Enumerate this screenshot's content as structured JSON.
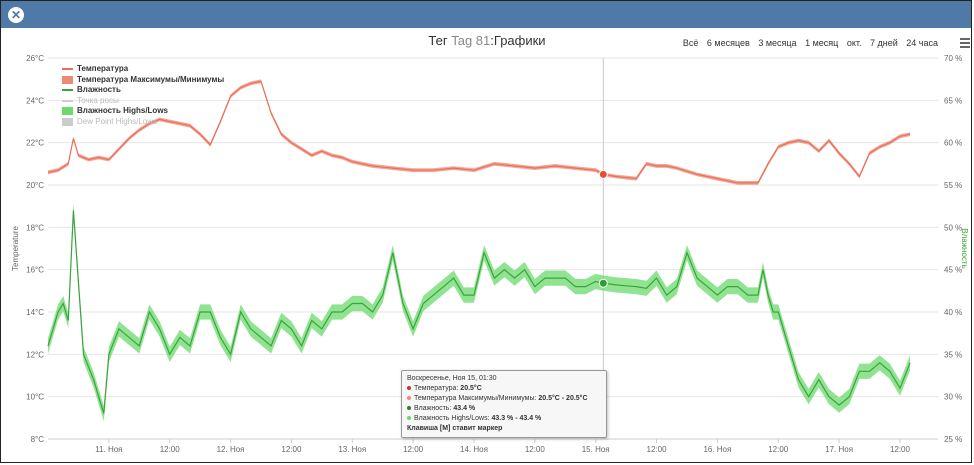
{
  "window": {
    "close_icon": "close-icon"
  },
  "header": {
    "title_prefix": "Тег",
    "title_tag": "Tag 81",
    "title_suffix": ":Графики",
    "ranges": [
      "Всё",
      "6 месяцев",
      "3 месяца",
      "1 месяц",
      "окт.",
      "7 дней",
      "24 часа"
    ],
    "menu_icon": "hamburger-icon"
  },
  "legend": [
    {
      "label": "Температура",
      "color": "#e8705a",
      "kind": "line",
      "bold": true,
      "muted": false
    },
    {
      "label": "Температура Максимумы/Минимумы",
      "color": "#f08a74",
      "kind": "area",
      "bold": true,
      "muted": false
    },
    {
      "label": "Влажность",
      "color": "#3ca33c",
      "kind": "line",
      "bold": true,
      "muted": false
    },
    {
      "label": "Точка росы",
      "color": "#cccccc",
      "kind": "line",
      "bold": false,
      "muted": true
    },
    {
      "label": "Влажность Highs/Lows",
      "color": "#6bd96b",
      "kind": "area",
      "bold": true,
      "muted": false
    },
    {
      "label": "Dew Point Highs/Lows",
      "color": "#cccccc",
      "kind": "area",
      "bold": false,
      "muted": true
    }
  ],
  "tooltip": {
    "header": "Воскресенье, Ноя 15, 01:30",
    "rows": [
      {
        "color": "#c0392b",
        "label": "Температура:",
        "value": "20.5°C"
      },
      {
        "color": "#f08a74",
        "label": "Температура Максимумы/Минимумы:",
        "value": "20.5°C - 20.5°C"
      },
      {
        "color": "#2e7d2e",
        "label": "Влажность:",
        "value": "43.4 %"
      },
      {
        "color": "#6bd96b",
        "label": "Влажность Highs/Lows:",
        "value": "43.3 % - 43.4 %"
      }
    ],
    "footer": "Клавиша [M] ставит маркер"
  },
  "chart_data": {
    "type": "line",
    "xlabel": "",
    "ylabel": "Temperature",
    "y2label": "Влажность",
    "ylim": [
      8,
      26
    ],
    "y2lim": [
      25,
      70
    ],
    "y_unit": "°C",
    "y2_unit": " %",
    "y_ticks": [
      8,
      10,
      12,
      14,
      16,
      18,
      20,
      22,
      24,
      26
    ],
    "y2_ticks": [
      25,
      30,
      35,
      40,
      45,
      50,
      55,
      60,
      65,
      70
    ],
    "xlim_hours": [
      0,
      168
    ],
    "x_ticks": [
      {
        "t": 12,
        "label": "11. Ноя"
      },
      {
        "t": 24,
        "label": "12:00"
      },
      {
        "t": 36,
        "label": "12. Ноя"
      },
      {
        "t": 48,
        "label": "12:00"
      },
      {
        "t": 60,
        "label": "13. Ноя"
      },
      {
        "t": 72,
        "label": "12:00"
      },
      {
        "t": 84,
        "label": "14. Ноя"
      },
      {
        "t": 96,
        "label": "12:00"
      },
      {
        "t": 108,
        "label": "15. Ноя"
      },
      {
        "t": 120,
        "label": "12:00"
      },
      {
        "t": 132,
        "label": "16. Ноя"
      },
      {
        "t": 144,
        "label": "12:00"
      },
      {
        "t": 156,
        "label": "17. Ноя"
      },
      {
        "t": 168,
        "label": "12:00"
      }
    ],
    "crosshair_t": 109.5,
    "series": [
      {
        "name": "Температура",
        "axis": "left",
        "color": "#e8705a",
        "x": [
          0,
          2,
          4,
          5,
          6,
          8,
          10,
          12,
          14,
          16,
          18,
          20,
          22,
          28,
          30,
          32,
          34,
          36,
          38,
          40,
          42,
          44,
          46,
          48,
          50,
          52,
          54,
          56,
          58,
          60,
          64,
          68,
          72,
          76,
          80,
          84,
          88,
          92,
          96,
          100,
          104,
          108,
          109.5,
          112,
          116,
          118,
          120,
          122,
          124,
          128,
          132,
          136,
          140,
          142,
          144,
          146,
          148,
          150,
          152,
          154,
          156,
          158,
          160,
          162,
          164,
          166,
          168,
          170
        ],
        "values": [
          20.6,
          20.7,
          21.0,
          22.2,
          21.4,
          21.2,
          21.3,
          21.2,
          21.7,
          22.2,
          22.6,
          22.9,
          23.1,
          22.8,
          22.4,
          21.9,
          23.0,
          24.2,
          24.6,
          24.8,
          24.9,
          23.4,
          22.4,
          22.0,
          21.7,
          21.4,
          21.6,
          21.4,
          21.3,
          21.1,
          20.9,
          20.8,
          20.7,
          20.7,
          20.8,
          20.7,
          21.0,
          20.9,
          20.8,
          20.9,
          20.8,
          20.7,
          20.5,
          20.4,
          20.3,
          21.0,
          20.9,
          20.9,
          20.8,
          20.5,
          20.3,
          20.1,
          20.1,
          21.0,
          21.8,
          22.0,
          22.1,
          22.0,
          21.6,
          22.1,
          21.5,
          21.0,
          20.4,
          21.5,
          21.8,
          22.0,
          22.3,
          22.4
        ]
      },
      {
        "name": "Влажность",
        "axis": "right",
        "color": "#3ca33c",
        "x": [
          0,
          2,
          3,
          4,
          5,
          7,
          9,
          10,
          11,
          12,
          14,
          16,
          18,
          20,
          22,
          24,
          26,
          28,
          30,
          32,
          34,
          36,
          38,
          40,
          42,
          44,
          46,
          48,
          50,
          52,
          54,
          56,
          58,
          60,
          62,
          64,
          66,
          68,
          70,
          72,
          74,
          76,
          78,
          80,
          82,
          84,
          86,
          88,
          90,
          92,
          94,
          96,
          98,
          100,
          102,
          104,
          106,
          108,
          109.5,
          112,
          114,
          116,
          118,
          120,
          122,
          124,
          126,
          128,
          130,
          132,
          134,
          136,
          138,
          140,
          141,
          142,
          143,
          144,
          146,
          148,
          150,
          152,
          154,
          156,
          158,
          160,
          162,
          164,
          166,
          168,
          170
        ],
        "values": [
          36,
          40,
          41,
          39,
          52,
          35,
          32,
          30,
          28,
          35,
          38,
          37,
          36,
          40,
          38,
          35,
          37,
          36,
          40,
          40,
          37,
          35,
          40,
          38,
          37,
          36,
          39,
          38,
          36,
          39,
          38,
          40,
          40,
          41,
          41,
          40,
          42,
          47,
          41,
          38,
          41,
          42,
          43,
          44,
          42,
          42,
          47,
          44,
          45,
          44,
          45,
          43,
          44,
          44,
          44,
          43,
          43,
          43.6,
          43.4,
          43.2,
          43.1,
          43.0,
          42.8,
          44,
          42,
          43,
          47,
          44,
          43,
          42,
          43,
          43,
          42,
          42,
          45,
          42,
          40,
          40,
          36,
          32,
          30,
          32,
          30,
          29,
          30,
          33,
          33,
          34,
          33,
          31,
          34
        ]
      }
    ]
  }
}
